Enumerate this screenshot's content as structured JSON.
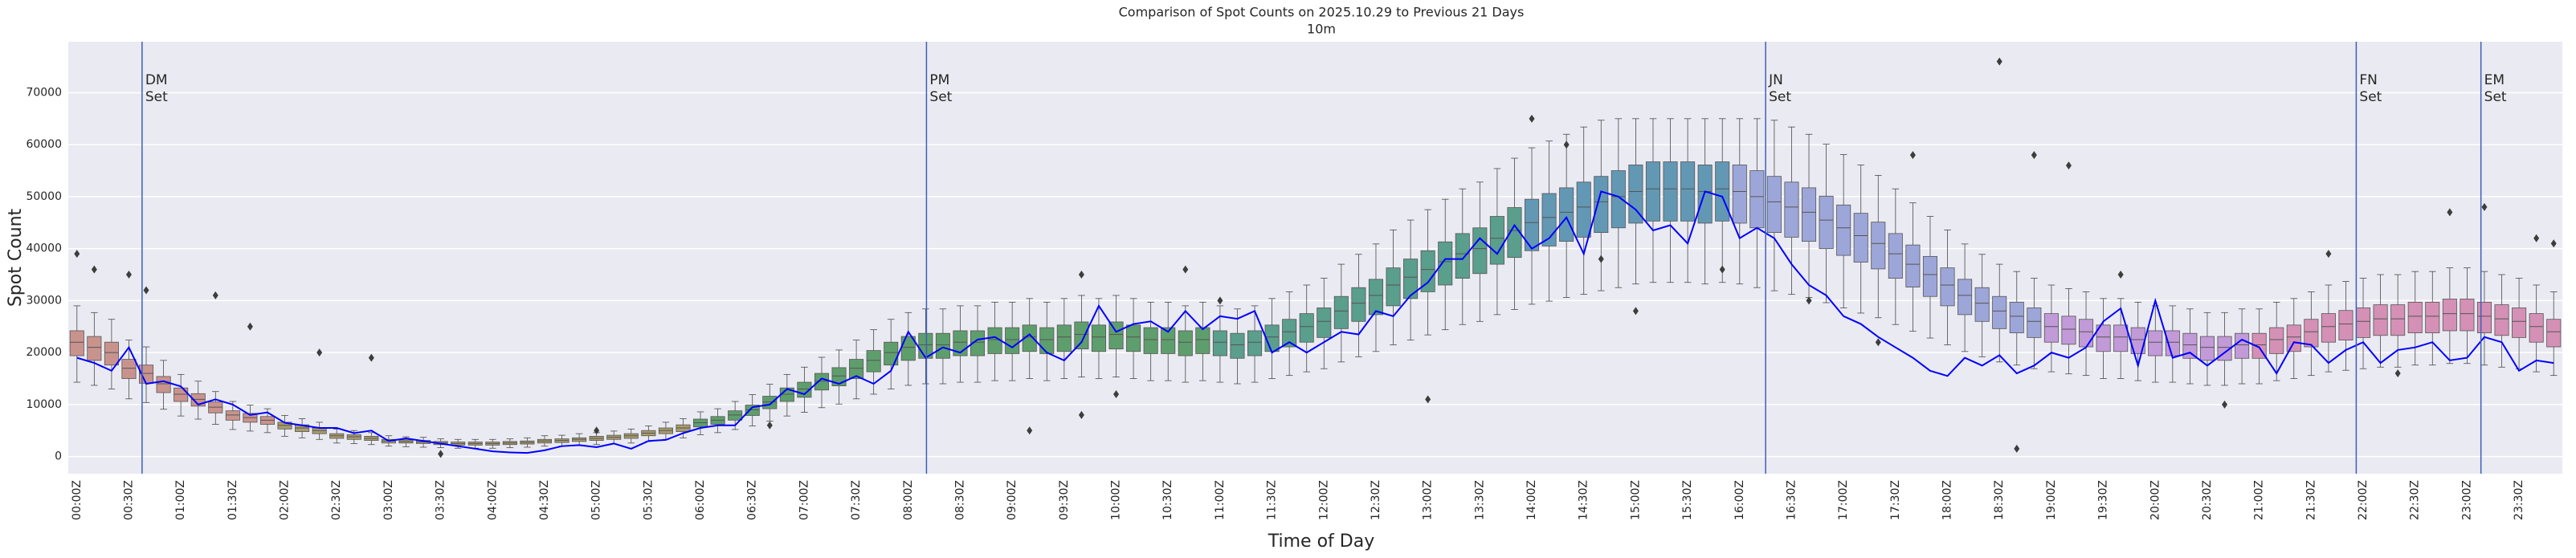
{
  "chart_data": {
    "type": "boxplot",
    "title": "Comparison of Spot Counts on 2025.10.29 to Previous 21 Days",
    "subtitle": "10m",
    "x_label": "Time of Day",
    "y_label": "Spot Count",
    "ylim": [
      -3300,
      79800
    ],
    "yticks": [
      0,
      10000,
      20000,
      30000,
      40000,
      50000,
      60000,
      70000
    ],
    "grid": true,
    "categories": [
      "00:00Z",
      null,
      null,
      "00:30Z",
      null,
      null,
      "01:00Z",
      null,
      null,
      "01:30Z",
      null,
      null,
      "02:00Z",
      null,
      null,
      "02:30Z",
      null,
      null,
      "03:00Z",
      null,
      null,
      "03:30Z",
      null,
      null,
      "04:00Z",
      null,
      null,
      "04:30Z",
      null,
      null,
      "05:00Z",
      null,
      null,
      "05:30Z",
      null,
      null,
      "06:00Z",
      null,
      null,
      "06:30Z",
      null,
      null,
      "07:00Z",
      null,
      null,
      "07:30Z",
      null,
      null,
      "08:00Z",
      null,
      null,
      "08:30Z",
      null,
      null,
      "09:00Z",
      null,
      null,
      "09:30Z",
      null,
      null,
      "10:00Z",
      null,
      null,
      "10:30Z",
      null,
      null,
      "11:00Z",
      null,
      null,
      "11:30Z",
      null,
      null,
      "12:00Z",
      null,
      null,
      "12:30Z",
      null,
      null,
      "13:00Z",
      null,
      null,
      "13:30Z",
      null,
      null,
      "14:00Z",
      null,
      null,
      "14:30Z",
      null,
      null,
      "15:00Z",
      null,
      null,
      "15:30Z",
      null,
      null,
      "16:00Z",
      null,
      null,
      "16:30Z",
      null,
      null,
      "17:00Z",
      null,
      null,
      "17:30Z",
      null,
      null,
      "18:00Z",
      null,
      null,
      "18:30Z",
      null,
      null,
      "19:00Z",
      null,
      null,
      "19:30Z",
      null,
      null,
      "20:00Z",
      null,
      null,
      "20:30Z",
      null,
      null,
      "21:00Z",
      null,
      null,
      "21:30Z",
      null,
      null,
      "22:00Z",
      null,
      null,
      "22:30Z",
      null,
      null,
      "23:00Z",
      null,
      null,
      "23:30Z",
      null,
      null
    ],
    "boxes": {
      "median": [
        22000,
        21000,
        20000,
        17000,
        16000,
        14000,
        12000,
        11000,
        9500,
        8000,
        7500,
        7000,
        6000,
        5500,
        5000,
        4000,
        3800,
        3500,
        3000,
        2900,
        2800,
        2600,
        2500,
        2500,
        2500,
        2600,
        2700,
        3000,
        3100,
        3300,
        3500,
        3700,
        4000,
        4500,
        5000,
        5500,
        6500,
        7000,
        8000,
        9000,
        10500,
        12000,
        13000,
        14500,
        15500,
        17000,
        18500,
        20000,
        21000,
        21500,
        21500,
        22000,
        22000,
        22500,
        22500,
        23000,
        22500,
        23000,
        23500,
        23000,
        23500,
        23000,
        22500,
        22500,
        22000,
        22500,
        22000,
        21500,
        22000,
        23000,
        24000,
        25000,
        26000,
        28000,
        29500,
        31000,
        33000,
        34500,
        36000,
        37500,
        39000,
        40000,
        42000,
        43500,
        45000,
        46000,
        47000,
        48000,
        49000,
        50000,
        51000,
        51500,
        51500,
        51500,
        51000,
        51500,
        51000,
        50000,
        49000,
        48000,
        47000,
        45500,
        44000,
        42500,
        41000,
        39000,
        37000,
        35000,
        33000,
        31000,
        29500,
        28000,
        27000,
        26000,
        25000,
        24500,
        24000,
        23000,
        23000,
        22500,
        22000,
        22000,
        21500,
        21000,
        21000,
        21500,
        21500,
        22500,
        23000,
        24000,
        25000,
        25500,
        26000,
        26500,
        26500,
        27000,
        27000,
        27500,
        27500,
        27000,
        26500,
        26000,
        25000,
        24000
      ],
      "q1": [
        19400,
        18500,
        17600,
        15000,
        14100,
        12300,
        10600,
        9700,
        8400,
        7000,
        6600,
        6200,
        5300,
        4800,
        4400,
        3500,
        3300,
        3100,
        2600,
        2600,
        2500,
        2300,
        2200,
        2200,
        2200,
        2300,
        2400,
        2600,
        2700,
        2900,
        3100,
        3300,
        3500,
        4000,
        4400,
        4800,
        5700,
        6200,
        7000,
        7900,
        9200,
        10600,
        11400,
        12800,
        13600,
        15000,
        16300,
        17600,
        18500,
        18900,
        18900,
        19400,
        19400,
        19800,
        19800,
        20200,
        19800,
        20200,
        20700,
        20200,
        20700,
        20200,
        19800,
        19800,
        19400,
        19800,
        19400,
        18900,
        19400,
        20200,
        21100,
        22000,
        22900,
        24600,
        26000,
        27300,
        29000,
        30400,
        31700,
        33000,
        34300,
        35200,
        37000,
        38300,
        39600,
        40500,
        41400,
        42200,
        43100,
        44000,
        44900,
        45300,
        45300,
        45300,
        44900,
        45300,
        44900,
        44000,
        43100,
        42200,
        41400,
        40000,
        38700,
        37400,
        36100,
        34300,
        32600,
        30800,
        29000,
        27300,
        26000,
        24600,
        23800,
        22900,
        22000,
        21600,
        21100,
        20200,
        20200,
        19800,
        19400,
        19400,
        18900,
        18500,
        18500,
        18900,
        18900,
        19800,
        20200,
        21100,
        22000,
        22400,
        22900,
        23300,
        23300,
        23800,
        23800,
        24200,
        24200,
        23800,
        23300,
        22900,
        22000,
        21100
      ],
      "q3": [
        24200,
        23100,
        22000,
        18700,
        17600,
        15400,
        13200,
        12100,
        10500,
        8800,
        8300,
        7700,
        6600,
        6100,
        5500,
        4400,
        4200,
        3900,
        3300,
        3200,
        3100,
        2900,
        2800,
        2800,
        2800,
        2900,
        3000,
        3300,
        3400,
        3600,
        3900,
        4100,
        4400,
        5000,
        5500,
        6100,
        7200,
        7700,
        8800,
        9900,
        11600,
        13200,
        14300,
        16000,
        17100,
        18700,
        20400,
        22000,
        23100,
        23700,
        23700,
        24200,
        24200,
        24800,
        24800,
        25300,
        24800,
        25300,
        25900,
        25300,
        25900,
        25300,
        24800,
        24800,
        24200,
        24800,
        24200,
        23700,
        24200,
        25300,
        26400,
        27500,
        28600,
        30800,
        32500,
        34100,
        36300,
        38000,
        39600,
        41300,
        42900,
        44000,
        46200,
        47900,
        49500,
        50600,
        51700,
        52800,
        53900,
        55000,
        56100,
        56700,
        56700,
        56700,
        56100,
        56700,
        56100,
        55000,
        53900,
        52800,
        51700,
        50100,
        48400,
        46800,
        45100,
        42900,
        40700,
        38500,
        36300,
        34100,
        32500,
        30800,
        29700,
        28600,
        27500,
        27000,
        26400,
        25300,
        25300,
        24800,
        24200,
        24200,
        23700,
        23100,
        23100,
        23700,
        23700,
        24800,
        25300,
        26400,
        27500,
        28100,
        28600,
        29200,
        29200,
        29700,
        29700,
        30300,
        30300,
        29700,
        29200,
        28600,
        27500,
        26400
      ],
      "whislo": [
        14300,
        13700,
        13000,
        11100,
        10400,
        9100,
        7800,
        7200,
        6200,
        5200,
        4900,
        4600,
        3900,
        3600,
        3300,
        2600,
        2500,
        2300,
        2000,
        1900,
        1800,
        1700,
        1600,
        1600,
        1600,
        1700,
        1800,
        2000,
        2000,
        2100,
        2300,
        2400,
        2600,
        2900,
        3300,
        3600,
        4200,
        4600,
        5200,
        5900,
        6800,
        7800,
        8500,
        9400,
        10100,
        11100,
        12000,
        13000,
        13700,
        14000,
        14000,
        14300,
        14300,
        14600,
        14600,
        15000,
        14600,
        15000,
        15300,
        15000,
        15300,
        15000,
        14600,
        14600,
        14300,
        14600,
        14300,
        14000,
        14300,
        15000,
        15600,
        16300,
        16900,
        18200,
        19200,
        20200,
        21500,
        22400,
        23400,
        24400,
        25400,
        26000,
        27300,
        28300,
        29300,
        29900,
        30600,
        31200,
        31900,
        32500,
        33200,
        33500,
        33500,
        33500,
        33200,
        33500,
        33200,
        32500,
        31900,
        31200,
        30600,
        29600,
        28600,
        27600,
        26700,
        25400,
        24100,
        22800,
        21500,
        20200,
        19200,
        18200,
        17600,
        16900,
        16300,
        15900,
        15600,
        15000,
        15000,
        14600,
        14300,
        14300,
        14000,
        13700,
        13700,
        14000,
        14000,
        14600,
        15000,
        15600,
        16300,
        16600,
        16900,
        17200,
        17200,
        17600,
        17600,
        17900,
        17900,
        17600,
        17200,
        16900,
        16300,
        15600
      ],
      "whishi": [
        29000,
        27700,
        26400,
        22400,
        21100,
        18500,
        15800,
        14500,
        12500,
        10600,
        9900,
        9200,
        7900,
        7300,
        6600,
        5300,
        5000,
        4600,
        4000,
        3800,
        3700,
        3400,
        3300,
        3300,
        3300,
        3400,
        3600,
        4000,
        4100,
        4400,
        4600,
        4900,
        5300,
        5900,
        6600,
        7300,
        8600,
        9200,
        10600,
        11900,
        13900,
        15800,
        17200,
        19100,
        20500,
        22400,
        24400,
        26400,
        27700,
        28400,
        28400,
        29000,
        29000,
        29700,
        29700,
        30400,
        29700,
        30400,
        31000,
        30400,
        31000,
        30400,
        29700,
        29700,
        29000,
        29700,
        29000,
        28400,
        29000,
        30400,
        31700,
        33000,
        34300,
        37000,
        38900,
        40900,
        43600,
        45500,
        47500,
        49500,
        51500,
        52800,
        55400,
        57400,
        59400,
        60700,
        62000,
        63400,
        64700,
        65000,
        65000,
        65000,
        65000,
        65000,
        65000,
        65000,
        65000,
        65000,
        64700,
        63400,
        62000,
        60100,
        58100,
        56100,
        54100,
        51500,
        48800,
        46200,
        43600,
        40900,
        38900,
        37000,
        35600,
        34300,
        33000,
        32300,
        31700,
        30400,
        30400,
        29700,
        29000,
        29000,
        28400,
        27700,
        27700,
        28400,
        28400,
        29700,
        30400,
        31700,
        33000,
        33700,
        34300,
        35000,
        35000,
        35600,
        35600,
        36300,
        36300,
        35600,
        35000,
        34300,
        33000,
        31700
      ]
    },
    "box_colors": [
      {
        "first": 0,
        "last": 11,
        "color": "#c9938d"
      },
      {
        "first": 12,
        "last": 35,
        "color": "#a99c6c"
      },
      {
        "first": 36,
        "last": 65,
        "color": "#5e9e6c"
      },
      {
        "first": 66,
        "last": 83,
        "color": "#5a9e8c"
      },
      {
        "first": 84,
        "last": 95,
        "color": "#6298b4"
      },
      {
        "first": 96,
        "last": 113,
        "color": "#9da6d8"
      },
      {
        "first": 114,
        "last": 125,
        "color": "#c29ad8"
      },
      {
        "first": 126,
        "last": 143,
        "color": "#d590b6"
      }
    ],
    "outliers": [
      [
        0,
        39000
      ],
      [
        1,
        36000
      ],
      [
        3,
        35000
      ],
      [
        4,
        32000
      ],
      [
        8,
        31000
      ],
      [
        10,
        25000
      ],
      [
        14,
        20000
      ],
      [
        17,
        19000
      ],
      [
        21,
        500
      ],
      [
        30,
        5000
      ],
      [
        40,
        6000
      ],
      [
        55,
        5000
      ],
      [
        58,
        35000
      ],
      [
        58,
        8000
      ],
      [
        60,
        12000
      ],
      [
        64,
        36000
      ],
      [
        66,
        30000
      ],
      [
        78,
        11000
      ],
      [
        84,
        65000
      ],
      [
        86,
        60000
      ],
      [
        88,
        38000
      ],
      [
        90,
        28000
      ],
      [
        95,
        36000
      ],
      [
        100,
        30000
      ],
      [
        104,
        22000
      ],
      [
        106,
        58000
      ],
      [
        111,
        76000
      ],
      [
        112,
        1500
      ],
      [
        113,
        58000
      ],
      [
        115,
        56000
      ],
      [
        118,
        35000
      ],
      [
        124,
        10000
      ],
      [
        130,
        39000
      ],
      [
        134,
        16000
      ],
      [
        137,
        47000
      ],
      [
        139,
        48000
      ],
      [
        142,
        42000
      ],
      [
        143,
        41000
      ]
    ],
    "line": {
      "color": "#0000ff",
      "values": [
        19000,
        18000,
        16500,
        21000,
        14000,
        14500,
        13500,
        10000,
        11000,
        10000,
        8000,
        8500,
        6500,
        6000,
        5500,
        5500,
        4500,
        5000,
        3000,
        3500,
        3000,
        2500,
        2000,
        1500,
        1000,
        800,
        700,
        1200,
        2000,
        2200,
        1800,
        2500,
        1500,
        3000,
        3200,
        4500,
        5500,
        6000,
        6000,
        9500,
        10000,
        13000,
        12000,
        15000,
        14000,
        15500,
        14000,
        16500,
        24000,
        19000,
        21000,
        20000,
        22500,
        23000,
        21000,
        23500,
        20000,
        18500,
        22000,
        29000,
        24000,
        25500,
        26000,
        24000,
        28000,
        24500,
        27000,
        26500,
        28000,
        20000,
        22000,
        20000,
        22000,
        24000,
        23500,
        28000,
        27000,
        31000,
        33500,
        38000,
        38000,
        42000,
        39000,
        44500,
        40000,
        42000,
        46000,
        39000,
        51000,
        50000,
        47500,
        43500,
        44500,
        41000,
        51000,
        50000,
        42000,
        44000,
        42000,
        37000,
        33000,
        31000,
        27000,
        25500,
        23000,
        21000,
        19000,
        16500,
        15500,
        19000,
        17500,
        19500,
        16000,
        17500,
        20000,
        19000,
        21000,
        26000,
        28500,
        17500,
        30000,
        19000,
        20000,
        17500,
        20000,
        22500,
        21000,
        16000,
        22000,
        21500,
        18000,
        20500,
        22000,
        18000,
        20500,
        21000,
        22000,
        18500,
        19000,
        23000,
        22000,
        16500,
        18500,
        18000
      ]
    },
    "vlines_color": "#3d5fb8",
    "vlines": [
      {
        "x": 3.76,
        "label": [
          "DM",
          "Set"
        ]
      },
      {
        "x": 49.05,
        "label": [
          "PM",
          "Set"
        ]
      },
      {
        "x": 97.5,
        "label": [
          "JN",
          "Set"
        ]
      },
      {
        "x": 131.6,
        "label": [
          "FN",
          "Set"
        ]
      },
      {
        "x": 138.8,
        "label": [
          "EM",
          "Set"
        ]
      }
    ]
  }
}
